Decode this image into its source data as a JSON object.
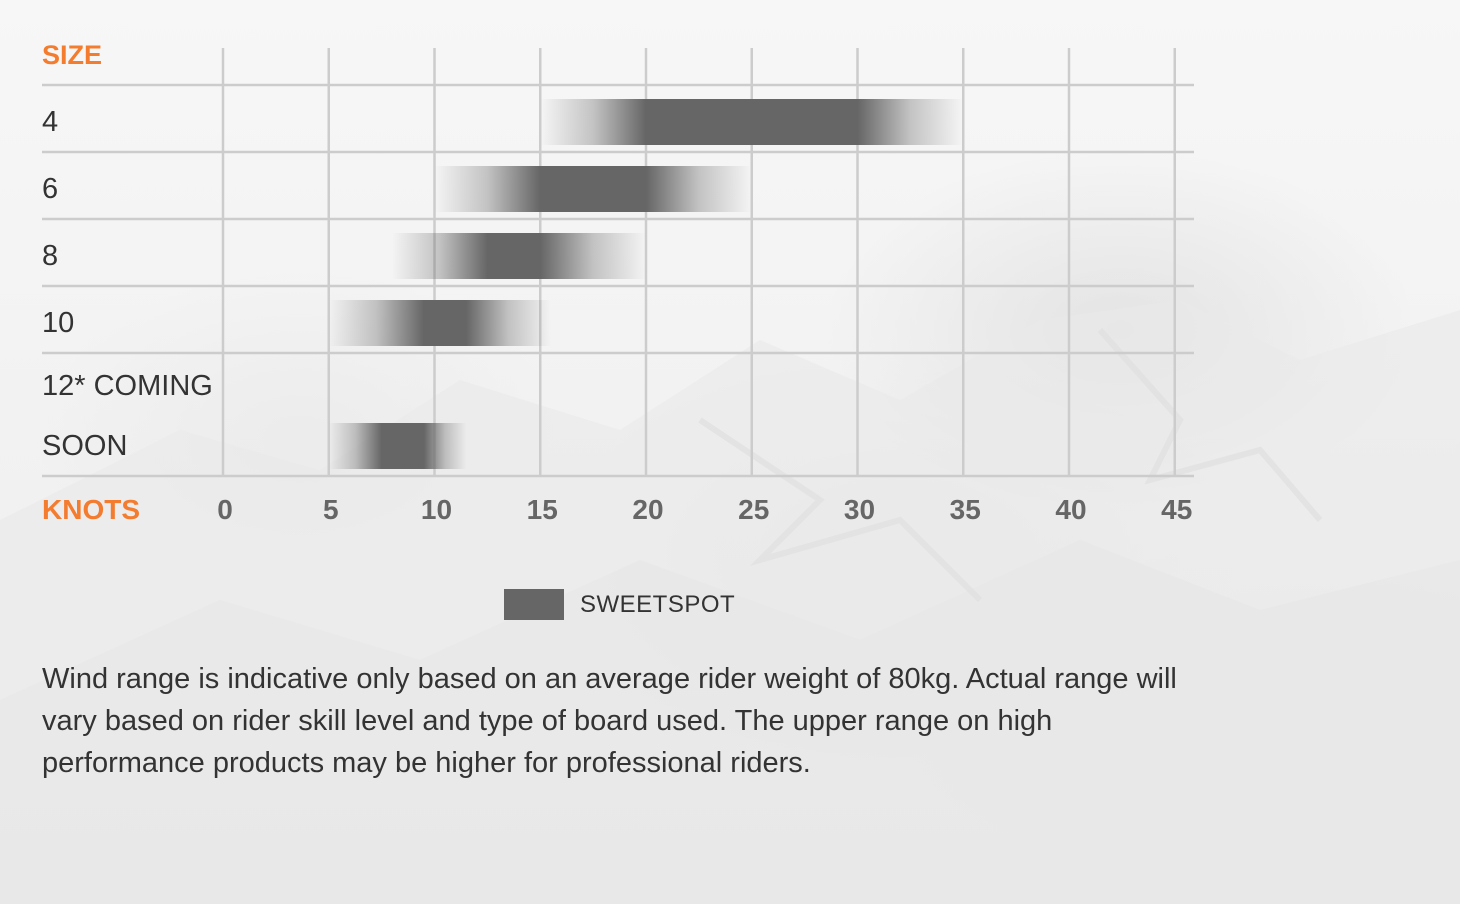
{
  "chart_data": {
    "type": "range-bar",
    "y_header": "SIZE",
    "x_header": "KNOTS",
    "x_ticks": [
      0,
      5,
      10,
      15,
      20,
      25,
      30,
      35,
      40,
      45
    ],
    "xlim": [
      0,
      45
    ],
    "rows": [
      {
        "label": "4",
        "range": [
          15,
          35
        ],
        "sweetspot": [
          20,
          30
        ]
      },
      {
        "label": "6",
        "range": [
          10,
          25
        ],
        "sweetspot": [
          15,
          20
        ]
      },
      {
        "label": "8",
        "range": [
          8,
          20
        ],
        "sweetspot": [
          12.5,
          15
        ]
      },
      {
        "label": "10",
        "range": [
          5,
          15.5
        ],
        "sweetspot": [
          9.5,
          11.5
        ]
      },
      {
        "label_lines": [
          "12* COMING",
          "SOON"
        ],
        "range": [
          5,
          11.5
        ],
        "sweetspot": [
          7.5,
          9.5
        ]
      }
    ],
    "legend": [
      {
        "name": "SWEETSPOT",
        "color": "#666666"
      }
    ],
    "colors": {
      "accent": "#f47c2f",
      "bar": "#666666",
      "grid": "#cccccc",
      "text": "#333333",
      "tick": "#666666"
    }
  },
  "note": "Wind range is indicative only based on an average rider weight of 80kg. Actual range will vary based on rider skill level and type of board used. The upper range on high performance products may be higher for professional riders."
}
